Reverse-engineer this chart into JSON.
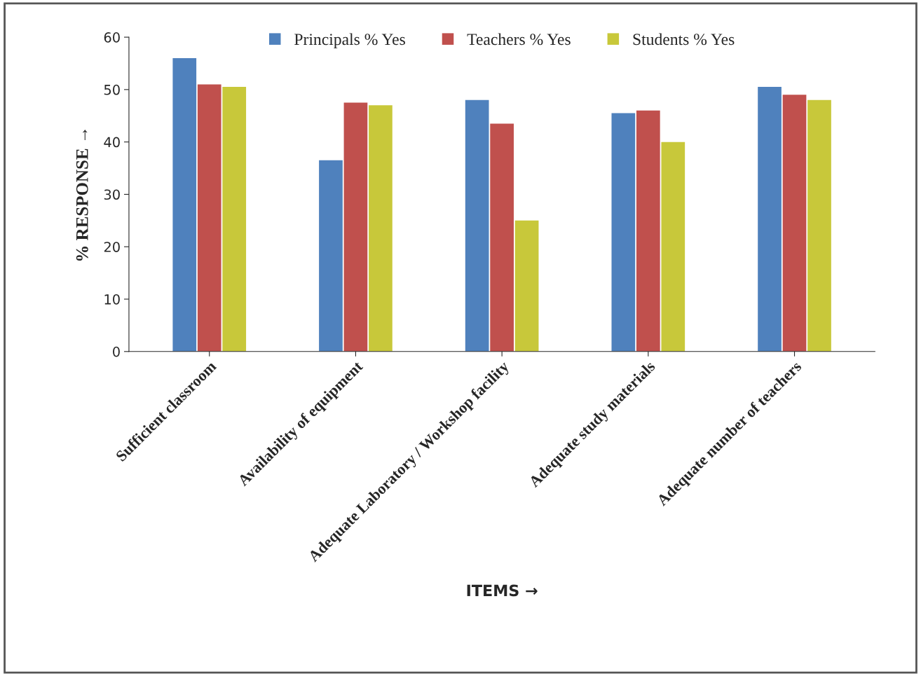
{
  "chart_data": {
    "type": "bar",
    "categories": [
      "Sufficient classroom",
      "Availability of equipment",
      "Adequate Laboratory / Workshop facility",
      "Adequate study materials",
      "Adequate number of teachers"
    ],
    "series": [
      {
        "name": "Principals % Yes",
        "color": "#4f81bd",
        "values": [
          56,
          36.5,
          48,
          45.5,
          50.5
        ]
      },
      {
        "name": "Teachers % Yes",
        "color": "#c0504d",
        "values": [
          51,
          47.5,
          43.5,
          46,
          49
        ]
      },
      {
        "name": "Students % Yes",
        "color": "#c8c83a",
        "values": [
          50.5,
          47,
          25,
          40,
          48
        ]
      }
    ],
    "xlabel": "ITEMS →",
    "ylabel": "% RESPONSE →",
    "ylim": [
      0,
      60
    ],
    "yticks": [
      0,
      10,
      20,
      30,
      40,
      50,
      60
    ],
    "legend": "top",
    "grid": false
  }
}
